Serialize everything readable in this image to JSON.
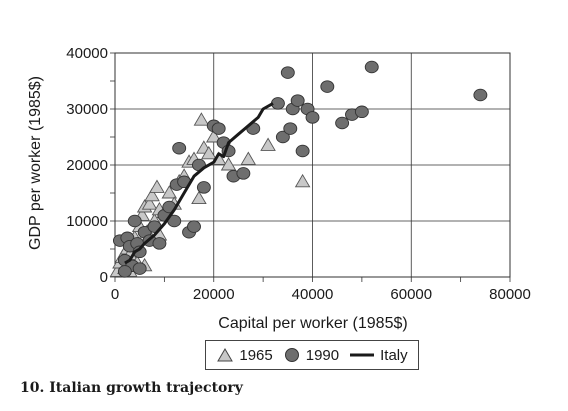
{
  "chart_data": {
    "type": "scatter",
    "title": "",
    "xlabel": "Capital per worker (1985$)",
    "ylabel": "GDP per worker (1985$)",
    "xlim": [
      0,
      80000
    ],
    "ylim": [
      0,
      40000
    ],
    "xticks": [
      0,
      20000,
      40000,
      60000,
      80000
    ],
    "yticks": [
      0,
      10000,
      20000,
      30000,
      40000
    ],
    "x_tick_labels": [
      "0",
      "20000",
      "40000",
      "60000",
      "80000"
    ],
    "y_tick_labels": [
      "0",
      "10000",
      "20000",
      "30000",
      "40000"
    ],
    "grid": true,
    "legend_position": "bottom",
    "series": [
      {
        "name": "1965",
        "marker": "triangle",
        "color": "#c8c8c8",
        "points": [
          [
            500,
            1000
          ],
          [
            1000,
            2500
          ],
          [
            1500,
            3500
          ],
          [
            2000,
            1500
          ],
          [
            2500,
            5000
          ],
          [
            3000,
            4000
          ],
          [
            3500,
            6000
          ],
          [
            4000,
            7000
          ],
          [
            4500,
            2500
          ],
          [
            5000,
            9000
          ],
          [
            5500,
            11000
          ],
          [
            6000,
            12500
          ],
          [
            6500,
            8000
          ],
          [
            7000,
            13000
          ],
          [
            7500,
            14500
          ],
          [
            8000,
            10000
          ],
          [
            8500,
            16000
          ],
          [
            9000,
            12000
          ],
          [
            10000,
            11500
          ],
          [
            11000,
            15000
          ],
          [
            12000,
            13000
          ],
          [
            13000,
            17000
          ],
          [
            14000,
            18000
          ],
          [
            15000,
            20500
          ],
          [
            16000,
            21000
          ],
          [
            17000,
            14000
          ],
          [
            17500,
            28000
          ],
          [
            18000,
            23000
          ],
          [
            19000,
            22000
          ],
          [
            20000,
            25000
          ],
          [
            21000,
            21000
          ],
          [
            23000,
            20000
          ],
          [
            27000,
            21000
          ],
          [
            31000,
            23500
          ],
          [
            38000,
            17000
          ],
          [
            6000,
            2000
          ],
          [
            3000,
            1000
          ],
          [
            9000,
            7500
          ]
        ]
      },
      {
        "name": "1990",
        "marker": "circle",
        "color": "#6e6e6e",
        "points": [
          [
            1000,
            6500
          ],
          [
            2000,
            3000
          ],
          [
            2500,
            7000
          ],
          [
            3000,
            5500
          ],
          [
            3500,
            2000
          ],
          [
            4000,
            10000
          ],
          [
            4500,
            6000
          ],
          [
            5000,
            4500
          ],
          [
            6000,
            8000
          ],
          [
            7000,
            6500
          ],
          [
            8000,
            9000
          ],
          [
            9000,
            6000
          ],
          [
            10000,
            11000
          ],
          [
            11000,
            12500
          ],
          [
            12000,
            10000
          ],
          [
            12500,
            16500
          ],
          [
            13000,
            23000
          ],
          [
            14000,
            17000
          ],
          [
            15000,
            8000
          ],
          [
            16000,
            9000
          ],
          [
            17000,
            20000
          ],
          [
            18000,
            16000
          ],
          [
            20000,
            27000
          ],
          [
            21000,
            26500
          ],
          [
            22000,
            24000
          ],
          [
            23000,
            22500
          ],
          [
            24000,
            18000
          ],
          [
            26000,
            18500
          ],
          [
            28000,
            26500
          ],
          [
            33000,
            31000
          ],
          [
            34000,
            25000
          ],
          [
            35000,
            36500
          ],
          [
            35500,
            26500
          ],
          [
            36000,
            30000
          ],
          [
            37000,
            31500
          ],
          [
            38000,
            22500
          ],
          [
            39000,
            30000
          ],
          [
            40000,
            28500
          ],
          [
            43000,
            34000
          ],
          [
            46000,
            27500
          ],
          [
            48000,
            29000
          ],
          [
            50000,
            29500
          ],
          [
            52000,
            37500
          ],
          [
            74000,
            32500
          ],
          [
            2000,
            1000
          ],
          [
            5000,
            1500
          ]
        ]
      },
      {
        "name": "Italy",
        "marker": "line",
        "color": "#1a1a1a",
        "points": [
          [
            2000,
            2500
          ],
          [
            3000,
            3000
          ],
          [
            4000,
            4500
          ],
          [
            5000,
            5000
          ],
          [
            6000,
            6000
          ],
          [
            8000,
            7500
          ],
          [
            10000,
            9500
          ],
          [
            12000,
            12000
          ],
          [
            14000,
            15000
          ],
          [
            16000,
            18000
          ],
          [
            18000,
            19500
          ],
          [
            20000,
            20500
          ],
          [
            21000,
            22000
          ],
          [
            22000,
            21500
          ],
          [
            23000,
            24000
          ],
          [
            25000,
            25500
          ],
          [
            27000,
            27000
          ],
          [
            29000,
            28500
          ],
          [
            30000,
            30000
          ],
          [
            32000,
            31000
          ]
        ]
      }
    ]
  },
  "legend": {
    "items": [
      {
        "label": "1965",
        "symbol": "triangle"
      },
      {
        "label": "1990",
        "symbol": "circle"
      },
      {
        "label": "Italy",
        "symbol": "line"
      }
    ]
  },
  "caption": "10.  Italian growth trajectory"
}
